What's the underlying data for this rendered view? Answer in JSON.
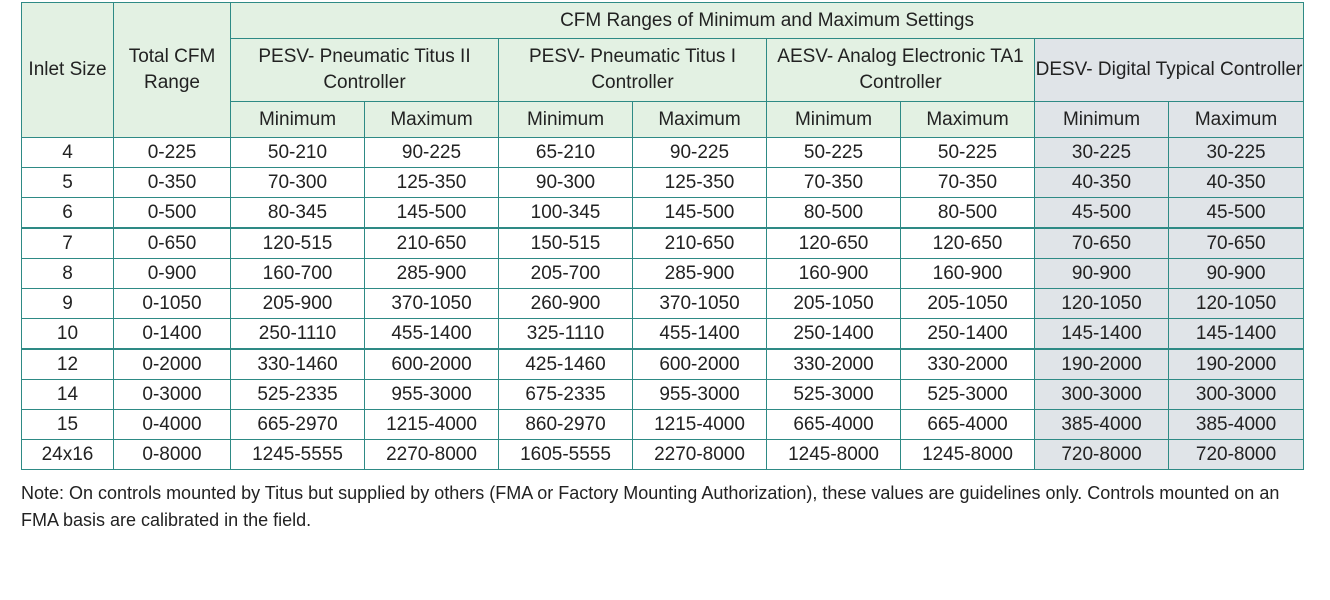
{
  "table": {
    "inlet_header": "Inlet Size",
    "total_header": "Total CFM Range",
    "top_header": "CFM Ranges of Minimum and Maximum Settings",
    "controllers": [
      {
        "name": "PESV- Pneumatic Titus II Controller"
      },
      {
        "name": "PESV- Pneumatic Titus I Controller"
      },
      {
        "name": "AESV- Analog Electronic TA1 Controller"
      },
      {
        "name": "DESV- Digital Typical Controller"
      }
    ],
    "min_label": "Minimum",
    "max_label": "Maximum",
    "rows": [
      [
        "4",
        "0-225",
        "50-210",
        "90-225",
        "65-210",
        "90-225",
        "50-225",
        "50-225",
        "30-225",
        "30-225"
      ],
      [
        "5",
        "0-350",
        "70-300",
        "125-350",
        "90-300",
        "125-350",
        "70-350",
        "70-350",
        "40-350",
        "40-350"
      ],
      [
        "6",
        "0-500",
        "80-345",
        "145-500",
        "100-345",
        "145-500",
        "80-500",
        "80-500",
        "45-500",
        "45-500"
      ],
      [
        "7",
        "0-650",
        "120-515",
        "210-650",
        "150-515",
        "210-650",
        "120-650",
        "120-650",
        "70-650",
        "70-650"
      ],
      [
        "8",
        "0-900",
        "160-700",
        "285-900",
        "205-700",
        "285-900",
        "160-900",
        "160-900",
        "90-900",
        "90-900"
      ],
      [
        "9",
        "0-1050",
        "205-900",
        "370-1050",
        "260-900",
        "370-1050",
        "205-1050",
        "205-1050",
        "120-1050",
        "120-1050"
      ],
      [
        "10",
        "0-1400",
        "250-1110",
        "455-1400",
        "325-1110",
        "455-1400",
        "250-1400",
        "250-1400",
        "145-1400",
        "145-1400"
      ],
      [
        "12",
        "0-2000",
        "330-1460",
        "600-2000",
        "425-1460",
        "600-2000",
        "330-2000",
        "330-2000",
        "190-2000",
        "190-2000"
      ],
      [
        "14",
        "0-3000",
        "525-2335",
        "955-3000",
        "675-2335",
        "955-3000",
        "525-3000",
        "525-3000",
        "300-3000",
        "300-3000"
      ],
      [
        "15",
        "0-4000",
        "665-2970",
        "1215-4000",
        "860-2970",
        "1215-4000",
        "665-4000",
        "665-4000",
        "385-4000",
        "385-4000"
      ],
      [
        "24x16",
        "0-8000",
        "1245-5555",
        "2270-8000",
        "1605-5555",
        "2270-8000",
        "1245-8000",
        "1245-8000",
        "720-8000",
        "720-8000"
      ]
    ]
  },
  "note": "Note: On controls mounted by Titus but supplied by others (FMA or Factory Mounting Authorization), these values are guidelines only. Controls mounted on an FMA basis are calibrated in the field."
}
